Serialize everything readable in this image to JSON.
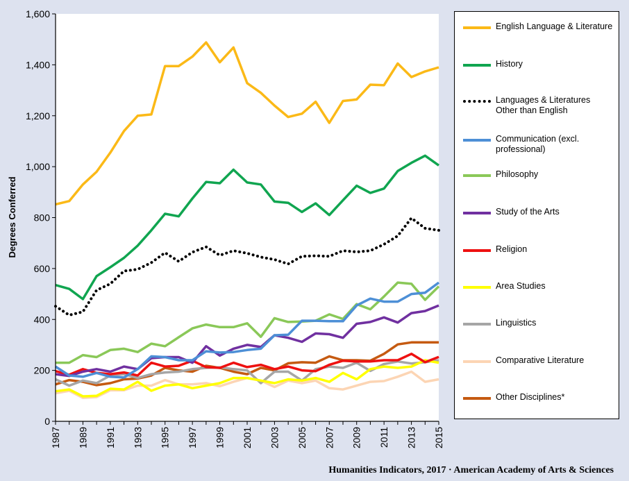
{
  "chart_data": {
    "type": "line",
    "ylabel": "Degrees Conferred",
    "ylim": [
      0,
      1600
    ],
    "yticks": [
      "0",
      "200",
      "400",
      "600",
      "800",
      "1,000",
      "1,200",
      "1,400",
      "1,600"
    ],
    "xticks": [
      "1987",
      "1989",
      "1991",
      "1993",
      "1995",
      "1997",
      "1999",
      "2001",
      "2003",
      "2005",
      "2007",
      "2009",
      "2011",
      "2013",
      "2015"
    ],
    "x": [
      1987,
      1988,
      1989,
      1990,
      1991,
      1992,
      1993,
      1994,
      1995,
      1996,
      1997,
      1998,
      1999,
      2000,
      2001,
      2002,
      2003,
      2004,
      2005,
      2006,
      2007,
      2008,
      2009,
      2010,
      2011,
      2012,
      2013,
      2014,
      2015
    ],
    "grid": false,
    "legend_position": "right",
    "series": [
      {
        "name": "English Language & Literature",
        "color": "#fbb917",
        "style": "solid",
        "values": [
          852,
          865,
          930,
          980,
          1055,
          1140,
          1200,
          1205,
          1395,
          1395,
          1432,
          1488,
          1410,
          1468,
          1328,
          1290,
          1240,
          1195,
          1208,
          1255,
          1172,
          1258,
          1264,
          1322,
          1320,
          1405,
          1352,
          1374,
          1390
        ]
      },
      {
        "name": "History",
        "color": "#10a550",
        "style": "solid",
        "values": [
          535,
          520,
          480,
          570,
          605,
          642,
          690,
          750,
          815,
          805,
          875,
          940,
          935,
          988,
          938,
          930,
          863,
          858,
          822,
          856,
          810,
          868,
          925,
          897,
          914,
          983,
          1015,
          1043,
          1005
        ]
      },
      {
        "name": "Languages & Literatures Other than English",
        "color": "#000000",
        "style": "dotted",
        "values": [
          452,
          417,
          430,
          515,
          540,
          590,
          597,
          623,
          662,
          628,
          664,
          685,
          652,
          670,
          660,
          645,
          635,
          618,
          648,
          650,
          648,
          670,
          665,
          670,
          695,
          728,
          798,
          758,
          750
        ]
      },
      {
        "name": "Communication (excl. professional)",
        "color": "#4d8fd6",
        "style": "solid",
        "values": [
          215,
          180,
          175,
          190,
          175,
          172,
          205,
          255,
          252,
          240,
          240,
          275,
          270,
          272,
          280,
          285,
          338,
          340,
          395,
          395,
          393,
          393,
          455,
          482,
          470,
          470,
          500,
          505,
          545
        ]
      },
      {
        "name": "Philosophy",
        "color": "#8ac858",
        "style": "solid",
        "values": [
          230,
          230,
          260,
          252,
          280,
          285,
          272,
          305,
          295,
          330,
          365,
          380,
          370,
          370,
          385,
          332,
          405,
          390,
          392,
          395,
          420,
          402,
          460,
          440,
          490,
          545,
          540,
          477,
          530
        ]
      },
      {
        "name": "Study of the Arts",
        "color": "#7030a0",
        "style": "solid",
        "values": [
          185,
          178,
          195,
          205,
          195,
          215,
          205,
          248,
          252,
          252,
          230,
          295,
          258,
          285,
          300,
          292,
          338,
          328,
          312,
          345,
          342,
          328,
          383,
          390,
          408,
          388,
          425,
          433,
          455
        ]
      },
      {
        "name": "Religion",
        "color": "#ee1111",
        "style": "solid",
        "values": [
          197,
          183,
          205,
          190,
          185,
          192,
          180,
          230,
          215,
          218,
          238,
          213,
          210,
          230,
          213,
          222,
          205,
          215,
          200,
          197,
          222,
          238,
          235,
          235,
          240,
          240,
          265,
          232,
          253
        ]
      },
      {
        "name": "Area Studies",
        "color": "#ffff00",
        "style": "solid",
        "values": [
          118,
          125,
          98,
          100,
          128,
          125,
          155,
          120,
          140,
          145,
          130,
          140,
          150,
          170,
          170,
          160,
          150,
          165,
          160,
          170,
          155,
          190,
          165,
          205,
          215,
          210,
          215,
          240,
          230
        ]
      },
      {
        "name": "Linguistics",
        "color": "#a6a6a6",
        "style": "solid",
        "values": [
          165,
          140,
          160,
          150,
          180,
          185,
          170,
          185,
          192,
          195,
          205,
          210,
          212,
          205,
          200,
          150,
          195,
          195,
          160,
          205,
          215,
          210,
          230,
          198,
          225,
          235,
          227,
          232,
          240
        ]
      },
      {
        "name": "Comparative Literature",
        "color": "#fcd5b4",
        "style": "solid",
        "values": [
          110,
          120,
          92,
          95,
          122,
          122,
          140,
          140,
          162,
          145,
          145,
          150,
          138,
          155,
          170,
          160,
          135,
          160,
          150,
          160,
          130,
          125,
          140,
          155,
          158,
          175,
          195,
          155,
          165
        ]
      },
      {
        "name": "Other Disciplines*",
        "color": "#c55a11",
        "style": "solid",
        "values": [
          145,
          162,
          155,
          142,
          150,
          165,
          168,
          180,
          210,
          200,
          195,
          218,
          210,
          195,
          185,
          210,
          200,
          228,
          232,
          230,
          255,
          240,
          240,
          238,
          265,
          302,
          310,
          310,
          310
        ]
      }
    ]
  },
  "credit": "Humanities Indicators, 2017 · American Academy of Arts & Sciences"
}
